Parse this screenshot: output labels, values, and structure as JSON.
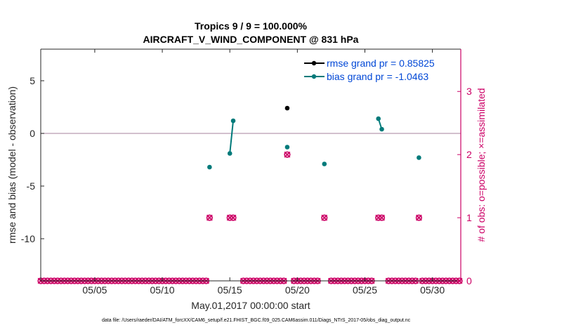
{
  "chart_data": {
    "type": "scatter",
    "title_line1": "Tropics 9 / 9 = 100.000%",
    "title_line2": "AIRCRAFT_V_WIND_COMPONENT @ 831 hPa",
    "xlabel": "May.01,2017 00:00:00 start",
    "ylabel_left": "rmse and bias (model - observation)",
    "ylabel_right": "# of obs: o=possible; ×=assimilated",
    "xlim": [
      1,
      32.1
    ],
    "ylim_left": [
      -14,
      8
    ],
    "ylim_right": [
      0,
      3.67
    ],
    "x_ticks": [
      {
        "value": 5,
        "label": "05/05"
      },
      {
        "value": 10,
        "label": "05/10"
      },
      {
        "value": 15,
        "label": "05/15"
      },
      {
        "value": 20,
        "label": "05/20"
      },
      {
        "value": 25,
        "label": "05/25"
      },
      {
        "value": 30,
        "label": "05/30"
      }
    ],
    "y_ticks_left": [
      {
        "value": 5,
        "label": "5"
      },
      {
        "value": 0,
        "label": "0"
      },
      {
        "value": -5,
        "label": "-5"
      },
      {
        "value": -10,
        "label": "-10"
      }
    ],
    "y_ticks_right": [
      {
        "value": 3,
        "label": "3"
      },
      {
        "value": 2,
        "label": "2"
      },
      {
        "value": 1,
        "label": "1"
      },
      {
        "value": 0,
        "label": "0"
      }
    ],
    "zero_line": 0,
    "legend": [
      {
        "name": "rmse grand pr = 0.85825",
        "color": "#000000"
      },
      {
        "name": "bias grand pr = -1.0463",
        "color": "#007a7a"
      }
    ],
    "series": [
      {
        "name": "rmse",
        "color": "#000000",
        "segments": [
          [
            [
              19.25,
              2.4
            ]
          ]
        ]
      },
      {
        "name": "bias",
        "color": "#007a7a",
        "segments": [
          [
            [
              13.5,
              -3.2
            ]
          ],
          [
            [
              15.0,
              -1.9
            ],
            [
              15.25,
              1.2
            ]
          ],
          [
            [
              19.25,
              -1.3
            ]
          ],
          [
            [
              22.0,
              -2.9
            ]
          ],
          [
            [
              26.0,
              1.4
            ],
            [
              26.25,
              0.4
            ]
          ],
          [
            [
              29.0,
              -2.3
            ]
          ]
        ]
      }
    ],
    "obs_count": {
      "color": "#cc0066",
      "step": 0.25,
      "start": 1.0,
      "end": 32.0,
      "nonzero": [
        {
          "x": 13.5,
          "n": 1
        },
        {
          "x": 15.0,
          "n": 1
        },
        {
          "x": 15.25,
          "n": 1
        },
        {
          "x": 19.25,
          "n": 2
        },
        {
          "x": 22.0,
          "n": 1
        },
        {
          "x": 26.0,
          "n": 1
        },
        {
          "x": 26.25,
          "n": 1
        },
        {
          "x": 29.0,
          "n": 1
        }
      ],
      "missing": [
        13.75,
        14.0,
        14.25,
        14.5,
        14.75,
        15.5,
        15.75,
        19.5,
        21.75,
        22.25,
        25.75,
        26.5
      ]
    },
    "footnote": "data file: /Users/raeder/DAI/ATM_forcXX/CAM6_setup/f.e21.FHIST_BGC.f09_025.CAM6assim.011/Diags_NTrS_2017-05/obs_diag_output.nc"
  }
}
